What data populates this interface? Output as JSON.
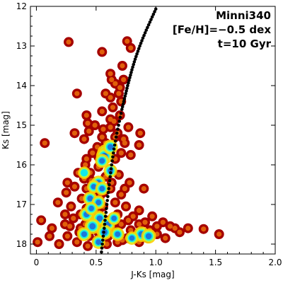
{
  "chart_data": {
    "type": "scatter",
    "title": "",
    "xlabel": "J-Ks [mag]",
    "ylabel": "Ks [mag]",
    "xlim": [
      -0.05,
      2.0
    ],
    "ylim": [
      18.25,
      12.0
    ],
    "y_inverted": true,
    "xticks": [
      "0",
      "0.5",
      "1.0",
      "1.5",
      "2.0"
    ],
    "xtick_values": [
      0,
      0.5,
      1.0,
      1.5,
      2.0
    ],
    "yticks": [
      "12",
      "13",
      "14",
      "15",
      "16",
      "17",
      "18"
    ],
    "ytick_values": [
      12,
      13,
      14,
      15,
      16,
      17,
      18
    ],
    "grid": false,
    "annotations": [
      "Minni340",
      "[Fe/H]=−0.5 dex",
      "t=10 Gyr"
    ],
    "annotation_position": "top-right",
    "series": [
      {
        "kind": "stars",
        "color_scale": "density (jet)",
        "points": [
          [
            0.27,
            12.9
          ],
          [
            0.55,
            13.15
          ],
          [
            0.76,
            12.88
          ],
          [
            0.79,
            13.05
          ],
          [
            0.72,
            13.5
          ],
          [
            0.62,
            13.7
          ],
          [
            0.63,
            13.85
          ],
          [
            0.66,
            13.95
          ],
          [
            0.73,
            13.85
          ],
          [
            0.7,
            14.05
          ],
          [
            0.34,
            14.2
          ],
          [
            0.58,
            14.2
          ],
          [
            0.69,
            14.2
          ],
          [
            0.62,
            14.3
          ],
          [
            0.71,
            14.4
          ],
          [
            0.64,
            14.55
          ],
          [
            0.55,
            14.65
          ],
          [
            0.7,
            14.75
          ],
          [
            0.42,
            14.75
          ],
          [
            0.62,
            14.85
          ],
          [
            0.65,
            14.9
          ],
          [
            0.43,
            14.95
          ],
          [
            0.49,
            15.0
          ],
          [
            0.56,
            15.1
          ],
          [
            0.62,
            15.05
          ],
          [
            0.77,
            15.05
          ],
          [
            0.32,
            15.2
          ],
          [
            0.44,
            15.15
          ],
          [
            0.68,
            15.2
          ],
          [
            0.87,
            15.2
          ],
          [
            0.4,
            15.35
          ],
          [
            0.55,
            15.3
          ],
          [
            0.66,
            15.3
          ],
          [
            0.73,
            15.35
          ],
          [
            0.58,
            15.45
          ],
          [
            0.74,
            15.45
          ],
          [
            0.07,
            15.45
          ],
          [
            0.86,
            15.5
          ],
          [
            0.51,
            15.55
          ],
          [
            0.6,
            15.6
          ],
          [
            0.47,
            15.7
          ],
          [
            0.56,
            15.6
          ],
          [
            0.58,
            15.7
          ],
          [
            0.62,
            15.65
          ],
          [
            0.71,
            15.7
          ],
          [
            0.79,
            15.75
          ],
          [
            0.42,
            15.85
          ],
          [
            0.52,
            15.8
          ],
          [
            0.66,
            15.85
          ],
          [
            0.41,
            16.0
          ],
          [
            0.52,
            16.05
          ],
          [
            0.62,
            16.1
          ],
          [
            0.35,
            16.2
          ],
          [
            0.45,
            16.2
          ],
          [
            0.69,
            16.25
          ],
          [
            0.58,
            16.3
          ],
          [
            0.46,
            16.4
          ],
          [
            0.26,
            16.45
          ],
          [
            0.51,
            16.5
          ],
          [
            0.32,
            16.55
          ],
          [
            0.78,
            16.45
          ],
          [
            0.42,
            16.6
          ],
          [
            0.62,
            16.6
          ],
          [
            0.9,
            16.6
          ],
          [
            0.25,
            16.7
          ],
          [
            0.47,
            16.7
          ],
          [
            0.56,
            16.7
          ],
          [
            0.71,
            16.75
          ],
          [
            0.53,
            16.8
          ],
          [
            0.38,
            16.85
          ],
          [
            0.18,
            16.95
          ],
          [
            0.48,
            16.95
          ],
          [
            0.66,
            16.95
          ],
          [
            0.29,
            17.05
          ],
          [
            0.56,
            17.05
          ],
          [
            0.75,
            17.05
          ],
          [
            0.44,
            17.15
          ],
          [
            0.86,
            17.15
          ],
          [
            0.24,
            17.25
          ],
          [
            0.37,
            17.25
          ],
          [
            0.52,
            17.2
          ],
          [
            0.68,
            17.25
          ],
          [
            0.81,
            17.3
          ],
          [
            0.97,
            17.3
          ],
          [
            0.31,
            17.35
          ],
          [
            0.46,
            17.4
          ],
          [
            0.61,
            17.4
          ],
          [
            0.04,
            17.4
          ],
          [
            0.77,
            17.4
          ],
          [
            0.91,
            17.45
          ],
          [
            1.06,
            17.45
          ],
          [
            0.41,
            17.5
          ],
          [
            0.56,
            17.5
          ],
          [
            0.71,
            17.5
          ],
          [
            0.86,
            17.5
          ],
          [
            1.01,
            17.55
          ],
          [
            1.12,
            17.55
          ],
          [
            0.13,
            17.6
          ],
          [
            0.28,
            17.55
          ],
          [
            0.48,
            17.6
          ],
          [
            0.64,
            17.6
          ],
          [
            0.79,
            17.65
          ],
          [
            0.95,
            17.65
          ],
          [
            1.16,
            17.6
          ],
          [
            1.27,
            17.6
          ],
          [
            1.4,
            17.62
          ],
          [
            0.36,
            17.7
          ],
          [
            0.52,
            17.7
          ],
          [
            0.69,
            17.75
          ],
          [
            0.84,
            17.75
          ],
          [
            1.01,
            17.75
          ],
          [
            1.2,
            17.7
          ],
          [
            1.53,
            17.75
          ],
          [
            0.11,
            17.8
          ],
          [
            0.26,
            17.8
          ],
          [
            0.44,
            17.8
          ],
          [
            0.6,
            17.8
          ],
          [
            0.76,
            17.85
          ],
          [
            0.93,
            17.85
          ],
          [
            1.08,
            17.85
          ],
          [
            0.34,
            17.95
          ],
          [
            0.51,
            17.9
          ],
          [
            0.68,
            17.95
          ],
          [
            0.86,
            17.95
          ],
          [
            0.01,
            17.95
          ],
          [
            0.19,
            18.0
          ],
          [
            0.43,
            18.05
          ],
          [
            0.59,
            18.0
          ],
          [
            0.47,
            17.3
          ],
          [
            0.42,
            17.1
          ],
          [
            0.5,
            16.85
          ],
          [
            0.4,
            16.35
          ],
          [
            0.63,
            16.45
          ],
          [
            0.74,
            16.6
          ],
          [
            0.37,
            17.6
          ],
          [
            0.55,
            17.95
          ],
          [
            0.72,
            17.9
          ],
          [
            0.24,
            17.5
          ],
          [
            0.5,
            17.45
          ]
        ],
        "dense_clumps": [
          [
            0.58,
            15.7,
            1.0
          ],
          [
            0.57,
            15.78,
            0.95
          ],
          [
            0.62,
            15.55,
            0.7
          ],
          [
            0.55,
            15.9,
            0.6
          ],
          [
            0.62,
            16.15,
            0.55
          ],
          [
            0.52,
            16.45,
            0.6
          ],
          [
            0.48,
            16.55,
            0.5
          ],
          [
            0.55,
            16.6,
            0.55
          ],
          [
            0.45,
            16.85,
            0.6
          ],
          [
            0.52,
            16.95,
            0.55
          ],
          [
            0.42,
            17.25,
            0.65
          ],
          [
            0.53,
            17.35,
            0.7
          ],
          [
            0.6,
            17.5,
            0.6
          ],
          [
            0.47,
            17.55,
            0.8
          ],
          [
            0.57,
            17.7,
            0.75
          ],
          [
            0.4,
            17.75,
            0.6
          ],
          [
            0.68,
            17.75,
            0.55
          ],
          [
            0.88,
            17.75,
            0.8
          ],
          [
            0.94,
            17.8,
            0.7
          ],
          [
            0.8,
            17.85,
            0.5
          ],
          [
            0.52,
            17.95,
            0.55
          ],
          [
            0.65,
            17.35,
            0.5
          ],
          [
            0.4,
            16.2,
            0.4
          ],
          [
            0.46,
            17.1,
            0.5
          ]
        ]
      },
      {
        "kind": "isochrone",
        "color": "#000000",
        "points": [
          [
            0.545,
            18.2
          ],
          [
            0.552,
            18.0
          ],
          [
            0.56,
            17.8
          ],
          [
            0.568,
            17.6
          ],
          [
            0.575,
            17.4
          ],
          [
            0.583,
            17.2
          ],
          [
            0.59,
            17.0
          ],
          [
            0.598,
            16.8
          ],
          [
            0.606,
            16.6
          ],
          [
            0.614,
            16.4
          ],
          [
            0.622,
            16.2
          ],
          [
            0.63,
            16.0
          ],
          [
            0.64,
            15.8
          ],
          [
            0.65,
            15.6
          ],
          [
            0.662,
            15.4
          ],
          [
            0.674,
            15.2
          ],
          [
            0.688,
            15.0
          ],
          [
            0.702,
            14.8
          ],
          [
            0.716,
            14.6
          ],
          [
            0.732,
            14.4
          ],
          [
            0.748,
            14.2
          ],
          [
            0.764,
            14.0
          ],
          [
            0.782,
            13.8
          ],
          [
            0.8,
            13.6
          ],
          [
            0.82,
            13.4
          ],
          [
            0.842,
            13.2
          ],
          [
            0.866,
            13.0
          ],
          [
            0.892,
            12.8
          ],
          [
            0.92,
            12.6
          ],
          [
            0.95,
            12.4
          ],
          [
            0.98,
            12.2
          ],
          [
            1.01,
            12.0
          ]
        ]
      }
    ]
  },
  "colors": {
    "sparse": "#a50000",
    "halo": "#e0600a",
    "ramp": [
      "#ffd000",
      "#a8ff50",
      "#00e8ff",
      "#1e6ad8",
      "#0a3aa0"
    ],
    "isochrone": "#000000",
    "axes": "#000000"
  }
}
